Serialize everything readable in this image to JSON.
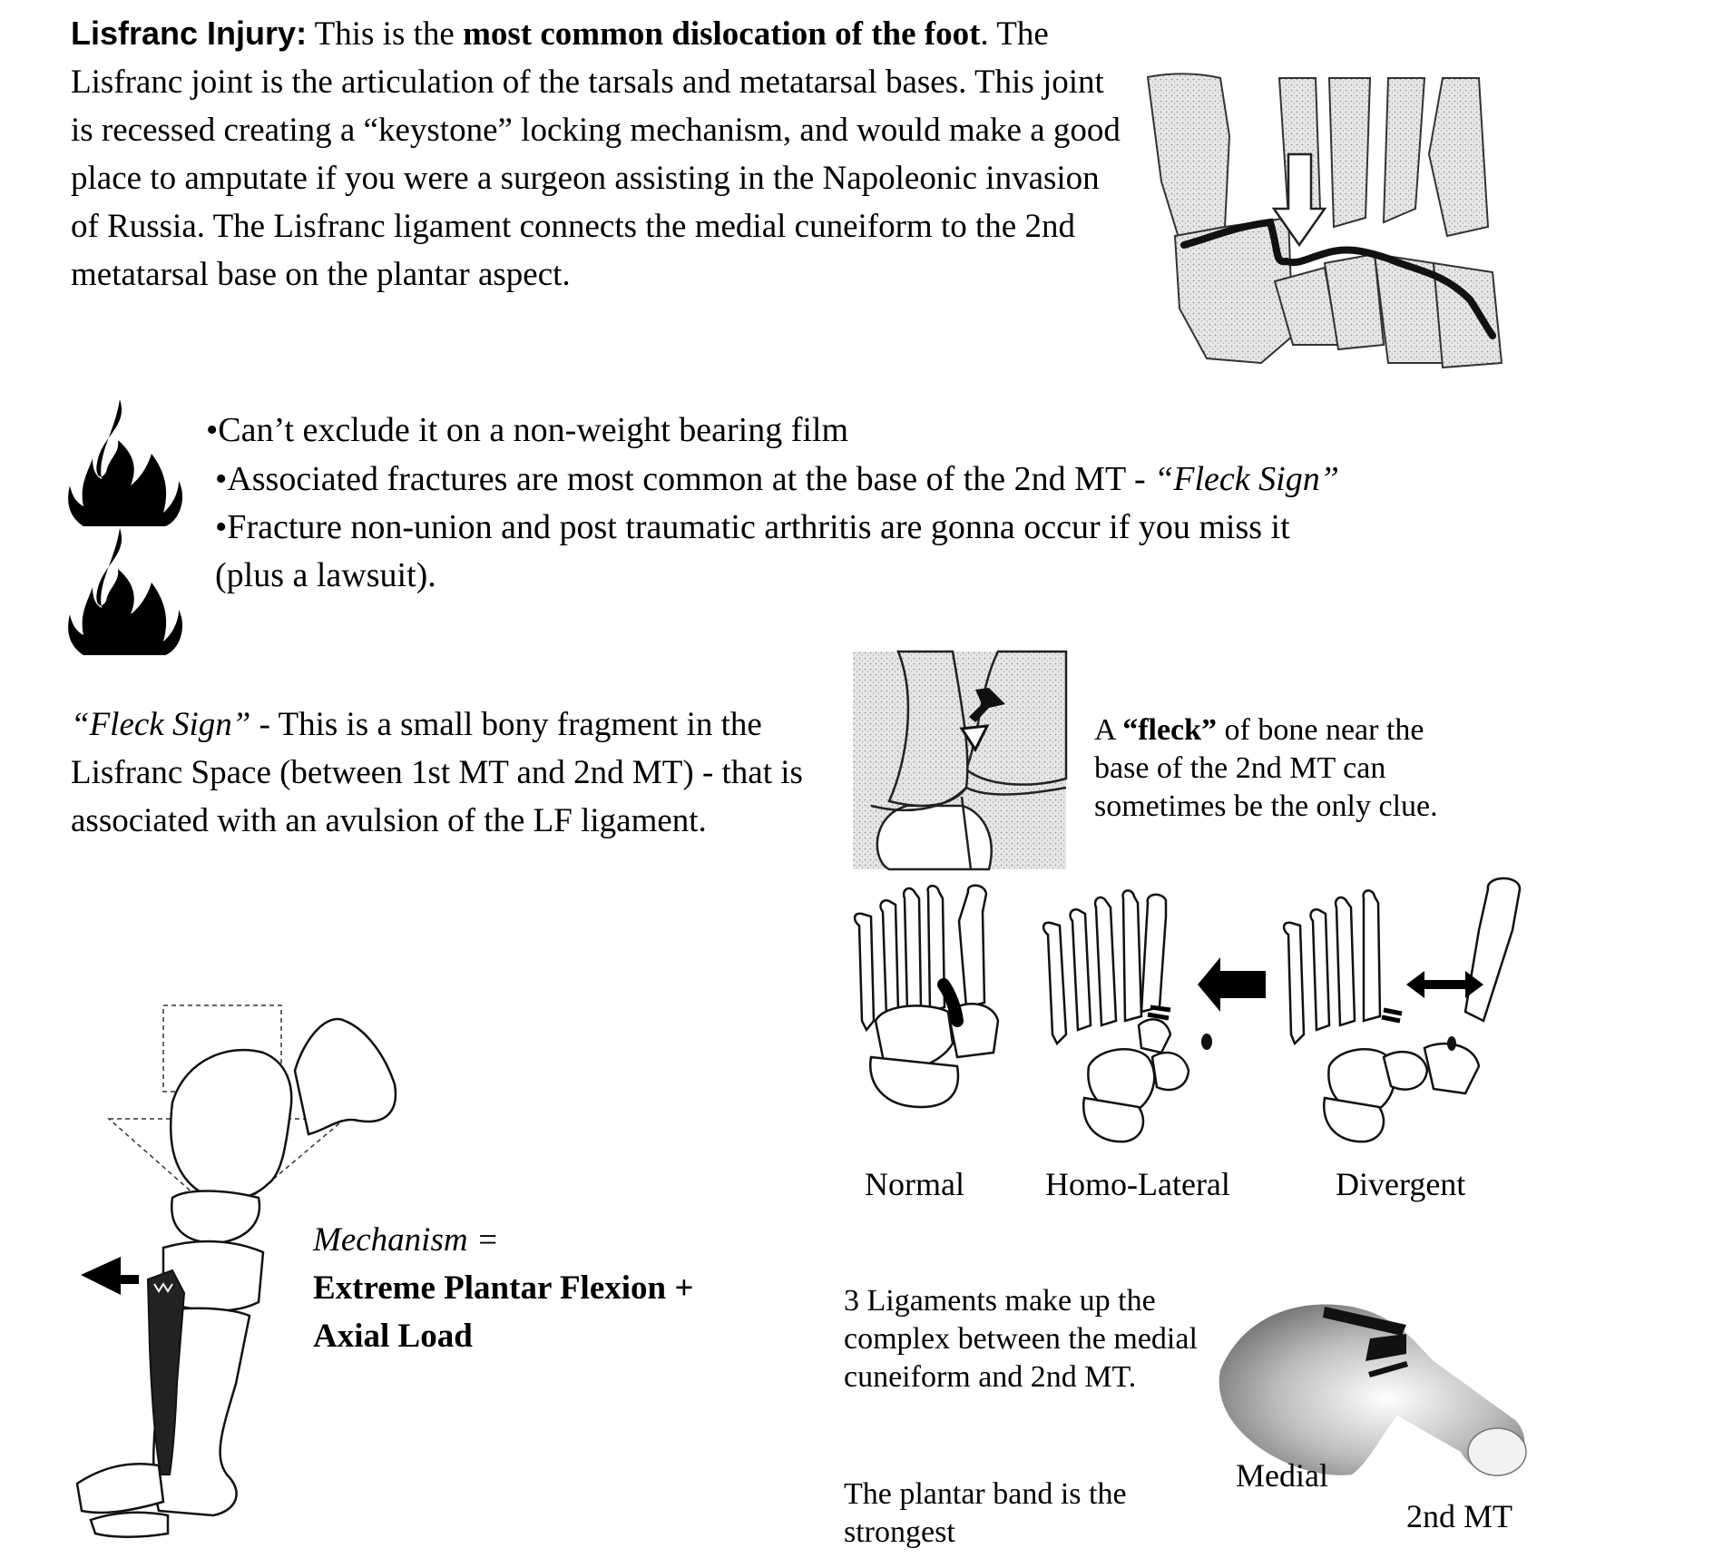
{
  "intro": {
    "title": "Lisfranc Injury:",
    "lead": " This is the ",
    "bold_phrase": "most common dislocation of the foot",
    "body": ".  The Lisfranc joint is the articulation of the tarsals and metatarsal bases.  This joint is recessed creating a “keystone” locking mechanism, and would make a good place to amputate if you were a surgeon assisting in the Napoleonic invasion of Russia. The Lisfranc ligament connects the medial cuneiform to the 2nd metatarsal base on the plantar aspect."
  },
  "bullets": {
    "b1": "•Can’t exclude it on a non-weight bearing film",
    "b2_text": "•Associated fractures are most common at the base of the 2nd MT - ",
    "b2_italic": "“Fleck Sign”",
    "b3": "•Fracture non-union and post traumatic arthritis are gonna occur if you miss it",
    "b3_cont": "(plus a lawsuit)."
  },
  "fleck": {
    "italic": "“Fleck Sign”",
    "body": " - This is a small bony fragment in the Lisfranc Space (between 1st MT and 2nd MT) - that is associated with an avulsion of the LF ligament.",
    "caption_pre": "A ",
    "caption_bold": "“fleck”",
    "caption_post": " of bone near the base of the 2nd MT can sometimes be the only clue."
  },
  "patterns": {
    "normal": "Normal",
    "homo": "Homo-Lateral",
    "divergent": "Divergent"
  },
  "mechanism": {
    "label": "Mechanism =",
    "line1": "Extreme Plantar Flexion +",
    "line2": "Axial Load"
  },
  "ligaments": {
    "text1": "3 Ligaments make up the complex between the medial cuneiform and 2nd MT.",
    "text2": "The plantar band is the strongest",
    "label_medial": "Medial",
    "label_2nd": "2nd MT"
  }
}
